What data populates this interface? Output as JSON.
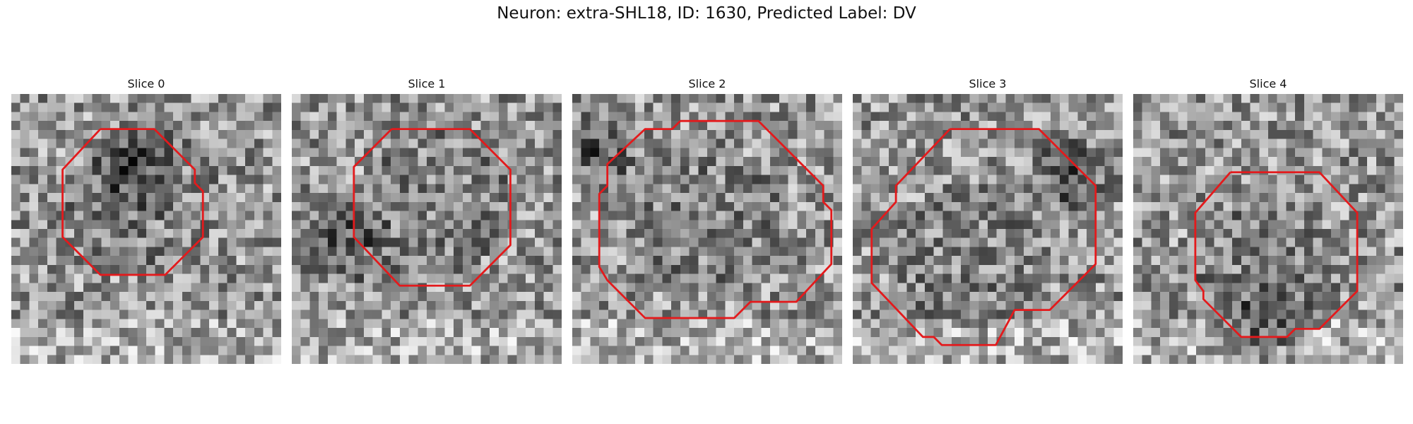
{
  "figure": {
    "title": "Neuron: extra-SHL18, ID: 1630, Predicted Label: DV"
  },
  "contour_color": "#e31a1c",
  "panels": [
    {
      "title": "Slice 0",
      "content": "grayscale noisy microscopy patch with a red octagonal cell outline",
      "dark_region": [
        0.45,
        0.3
      ],
      "contour": [
        [
          0.33,
          0.13
        ],
        [
          0.53,
          0.13
        ],
        [
          0.68,
          0.28
        ],
        [
          0.68,
          0.33
        ],
        [
          0.71,
          0.36
        ],
        [
          0.71,
          0.53
        ],
        [
          0.57,
          0.67
        ],
        [
          0.33,
          0.67
        ],
        [
          0.19,
          0.53
        ],
        [
          0.19,
          0.28
        ]
      ]
    },
    {
      "title": "Slice 1",
      "content": "grayscale noisy microscopy patch with a red octagonal cell outline",
      "dark_region": [
        0.2,
        0.55
      ],
      "contour": [
        [
          0.37,
          0.13
        ],
        [
          0.66,
          0.13
        ],
        [
          0.81,
          0.28
        ],
        [
          0.81,
          0.56
        ],
        [
          0.66,
          0.71
        ],
        [
          0.4,
          0.71
        ],
        [
          0.23,
          0.53
        ],
        [
          0.23,
          0.27
        ]
      ]
    },
    {
      "title": "Slice 2",
      "content": "grayscale noisy microscopy patch with a red decagonal cell outline",
      "dark_region": [
        0.1,
        0.2
      ],
      "contour": [
        [
          0.4,
          0.1
        ],
        [
          0.69,
          0.1
        ],
        [
          0.93,
          0.34
        ],
        [
          0.93,
          0.4
        ],
        [
          0.96,
          0.43
        ],
        [
          0.96,
          0.63
        ],
        [
          0.83,
          0.77
        ],
        [
          0.66,
          0.77
        ],
        [
          0.6,
          0.83
        ],
        [
          0.27,
          0.83
        ],
        [
          0.13,
          0.69
        ],
        [
          0.1,
          0.64
        ],
        [
          0.1,
          0.37
        ],
        [
          0.13,
          0.34
        ],
        [
          0.13,
          0.26
        ],
        [
          0.27,
          0.13
        ],
        [
          0.37,
          0.13
        ]
      ]
    },
    {
      "title": "Slice 3",
      "content": "grayscale noisy microscopy patch with a red decagonal cell outline",
      "dark_region": [
        0.8,
        0.3
      ],
      "contour": [
        [
          0.36,
          0.13
        ],
        [
          0.69,
          0.13
        ],
        [
          0.9,
          0.34
        ],
        [
          0.9,
          0.63
        ],
        [
          0.73,
          0.8
        ],
        [
          0.6,
          0.8
        ],
        [
          0.53,
          0.93
        ],
        [
          0.33,
          0.93
        ],
        [
          0.3,
          0.9
        ],
        [
          0.26,
          0.9
        ],
        [
          0.07,
          0.7
        ],
        [
          0.07,
          0.5
        ],
        [
          0.16,
          0.4
        ],
        [
          0.16,
          0.34
        ]
      ]
    },
    {
      "title": "Slice 4",
      "content": "grayscale noisy microscopy patch with a red octagonal cell outline",
      "dark_region": [
        0.5,
        0.85
      ],
      "contour": [
        [
          0.36,
          0.29
        ],
        [
          0.69,
          0.29
        ],
        [
          0.83,
          0.44
        ],
        [
          0.83,
          0.73
        ],
        [
          0.69,
          0.87
        ],
        [
          0.6,
          0.87
        ],
        [
          0.57,
          0.9
        ],
        [
          0.4,
          0.9
        ],
        [
          0.26,
          0.76
        ],
        [
          0.26,
          0.73
        ],
        [
          0.23,
          0.69
        ],
        [
          0.23,
          0.44
        ]
      ]
    }
  ]
}
